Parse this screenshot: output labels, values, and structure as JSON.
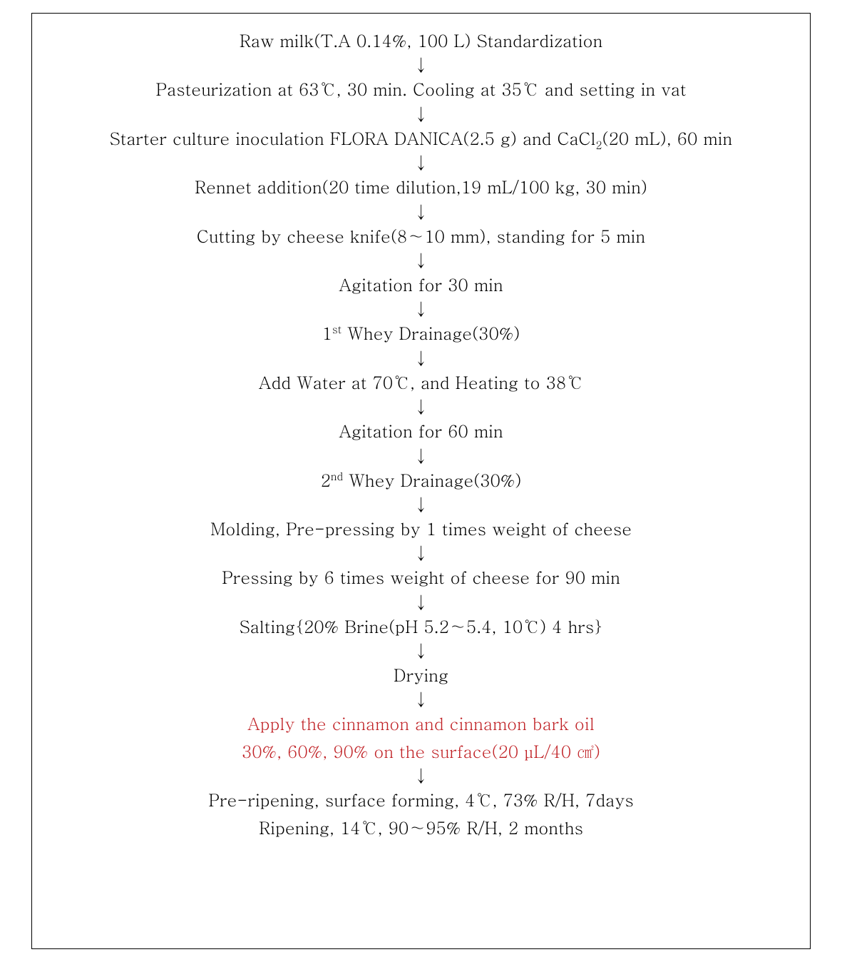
{
  "flowchart": {
    "type": "flowchart",
    "background_color": "#ffffff",
    "border_color": "#000000",
    "text_color": "#000000",
    "highlight_color": "#c02125",
    "font_family": "Batang / Times New Roman serif",
    "font_size_pt": 18,
    "arrow_glyph": "↓",
    "steps": [
      {
        "id": "s1",
        "text": "Raw milk(T.A 0.14%, 100 L) Standardization"
      },
      {
        "id": "s2",
        "text": "Pasteurization at 63℃, 30 min. Cooling at 35℃ and setting in vat"
      },
      {
        "id": "s3",
        "html": "Starter culture inoculation FLORA DANICA(2.5 g) and CaCl<span class=\"sub\">2</span>(20 mL), 60 min"
      },
      {
        "id": "s4",
        "text": "Rennet addition(20 time dilution,19 mL/100 kg, 30 min)"
      },
      {
        "id": "s5",
        "text": "Cutting by cheese knife(8∼10 mm), standing for 5 min"
      },
      {
        "id": "s6",
        "text": "Agitation for 30 min"
      },
      {
        "id": "s7",
        "html": "1<span class=\"sup\">st</span> Whey Drainage(30%)"
      },
      {
        "id": "s8",
        "text": "Add Water at 70℃, and Heating to 38℃"
      },
      {
        "id": "s9",
        "text": "Agitation for 60 min"
      },
      {
        "id": "s10",
        "html": "2<span class=\"sup\">nd</span> Whey Drainage(30%)"
      },
      {
        "id": "s11",
        "text": "Molding, Pre-pressing by 1 times weight of cheese"
      },
      {
        "id": "s12",
        "text": "Pressing by 6 times weight of cheese for 90 min"
      },
      {
        "id": "s13",
        "text": "Salting{20% Brine(pH 5.2∼5.4, 10℃) 4 hrs}"
      },
      {
        "id": "s14",
        "text": "Drying"
      },
      {
        "id": "s15",
        "highlight": true,
        "lines": [
          "Apply the cinnamon and cinnamon bark oil",
          "30%, 60%, 90% on the surface(20 µL/40 ㎠)"
        ]
      },
      {
        "id": "s16",
        "lines": [
          "Pre-ripening, surface forming, 4℃, 73% R/H, 7days",
          "Ripening, 14℃, 90∼95% R/H, 2 months"
        ]
      }
    ]
  }
}
